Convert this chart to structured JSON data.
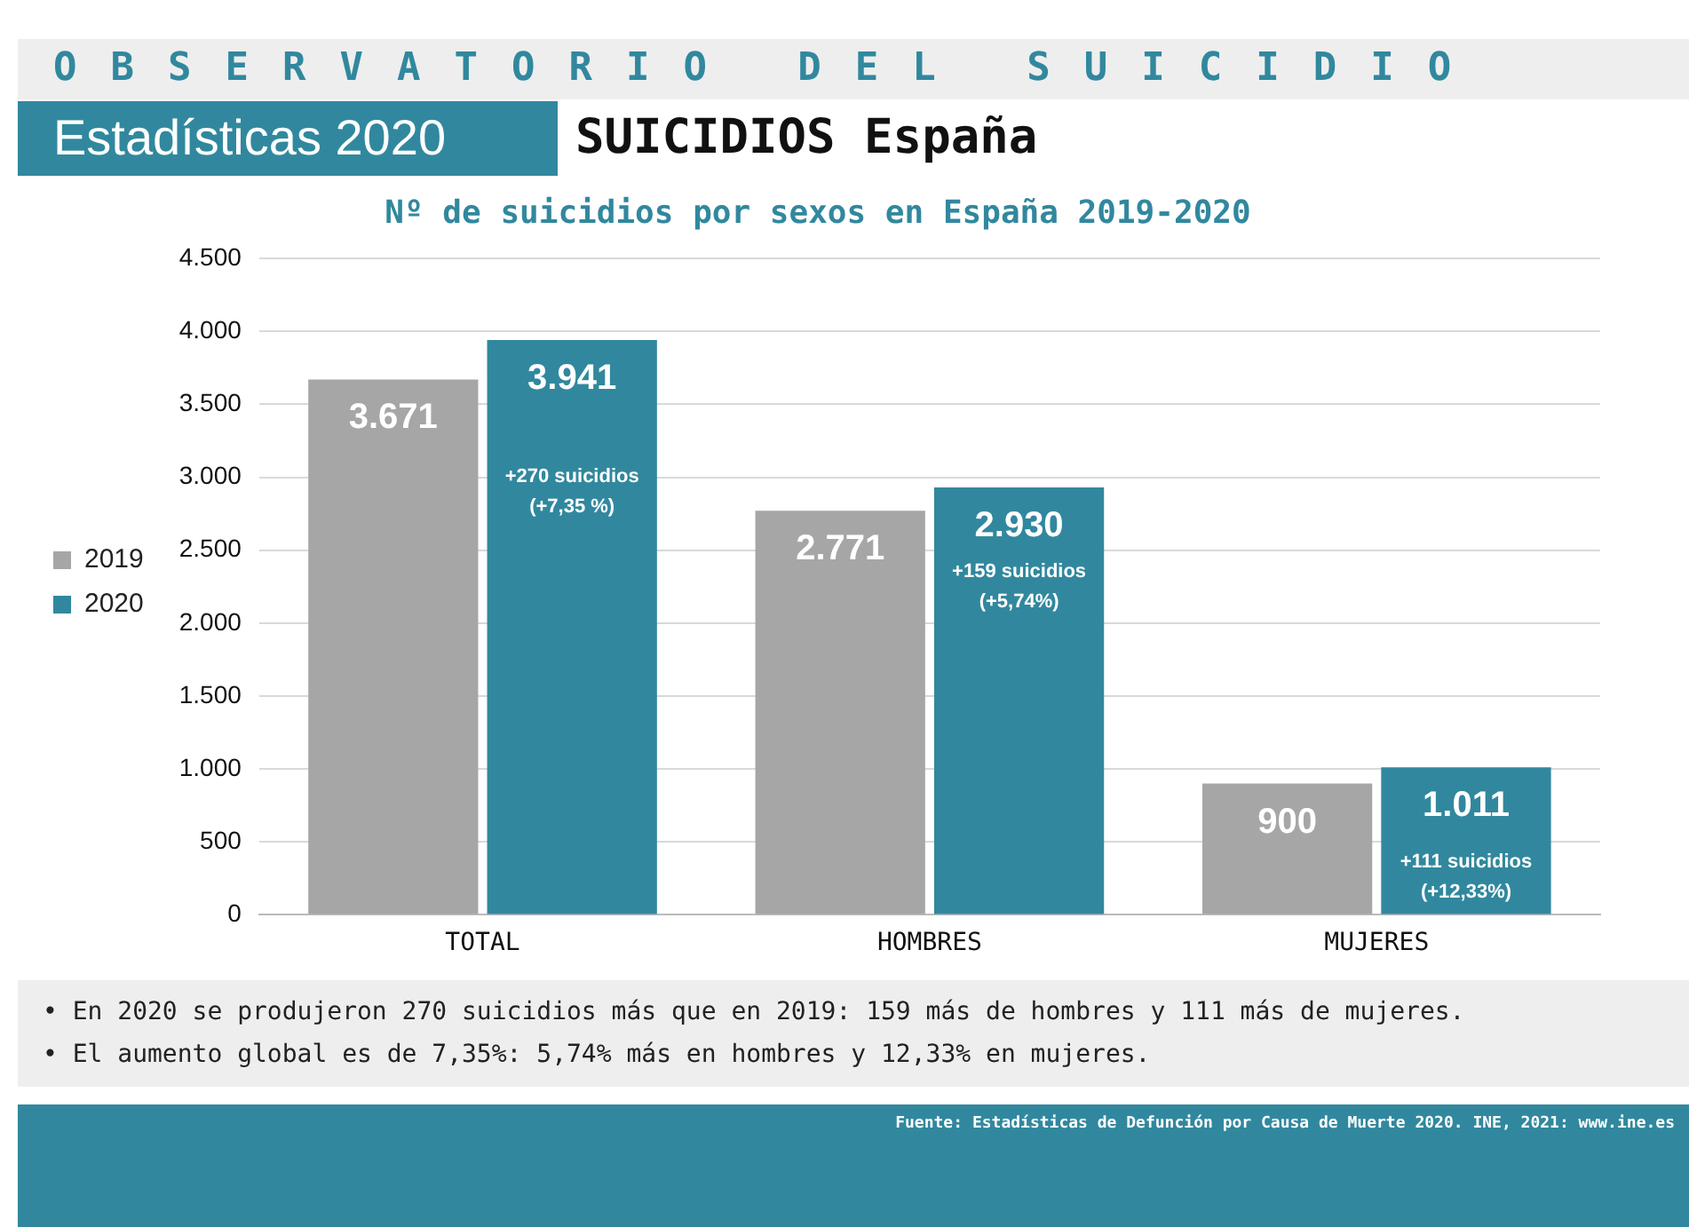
{
  "chart_data": {
    "type": "bar",
    "title": "Nº de suicidios por sexos en España 2019-2020",
    "categories": [
      "TOTAL",
      "HOMBRES",
      "MUJERES"
    ],
    "series": [
      {
        "name": "2019",
        "color": "#a6a6a6",
        "values": [
          3671,
          2771,
          900
        ],
        "value_labels": [
          "3.671",
          "2.771",
          "900"
        ]
      },
      {
        "name": "2020",
        "color": "#31889e",
        "values": [
          3941,
          2930,
          1011
        ],
        "value_labels": [
          "3.941",
          "2.930",
          "1.011"
        ]
      }
    ],
    "ylim": [
      0,
      4500
    ],
    "yticks": [
      {
        "value": 0,
        "label": "0"
      },
      {
        "value": 500,
        "label": "500"
      },
      {
        "value": 1000,
        "label": "1.000"
      },
      {
        "value": 1500,
        "label": "1.500"
      },
      {
        "value": 2000,
        "label": "2.000"
      },
      {
        "value": 2500,
        "label": "2.500"
      },
      {
        "value": 3000,
        "label": "3.000"
      },
      {
        "value": 3500,
        "label": "3.500"
      },
      {
        "value": 4000,
        "label": "4.000"
      },
      {
        "value": 4500,
        "label": "4.500"
      }
    ],
    "grid": "y",
    "legend": "left",
    "annotations": [
      "OBSERVATORIO DEL SUICIDIO",
      "Estadísticas 2020",
      "SUICIDIOS España",
      {
        "text": "+270 suicidios\n(+7,35 %)",
        "x": "TOTAL",
        "y": 2900
      },
      {
        "text": "+159 suicidios\n(+5,74%)",
        "x": "HOMBRES",
        "y": 2250
      },
      {
        "text": "+111 suicidios\n(+12,33%)",
        "x": "MUJERES",
        "y": 260
      },
      "• En 2020 se produjeron 270 suicidios más que en 2019: 159 más de hombres y 111 más de mujeres.",
      "• El aumento global es de 7,35%: 5,74% más en hombres y 12,33% en mujeres.",
      "Fuente: Estadísticas de Defunción por Causa de Muerte 2020. INE, 2021: www.ine.es"
    ]
  }
}
